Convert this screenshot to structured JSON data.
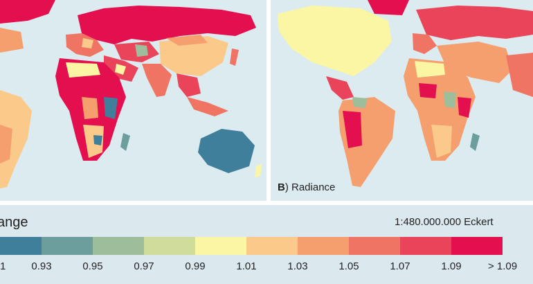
{
  "panels": {
    "a": {
      "letter": "",
      "label": ""
    },
    "b": {
      "letter": "B",
      "label": ") Radiance"
    }
  },
  "legend": {
    "title": "ange",
    "scale_projection": "1:480.000.000  Eckert",
    "classes": [
      {
        "color": "#3f7f9c"
      },
      {
        "color": "#6d9e9e"
      },
      {
        "color": "#9dbd9b"
      },
      {
        "color": "#cfdc9b"
      },
      {
        "color": "#fbf6a4"
      },
      {
        "color": "#fbc98a"
      },
      {
        "color": "#f59f6e"
      },
      {
        "color": "#f07463"
      },
      {
        "color": "#e9445a"
      },
      {
        "color": "#e30f4f"
      }
    ],
    "tick_labels": [
      "1",
      "0.93",
      "0.95",
      "0.97",
      "0.99",
      "1.01",
      "1.03",
      "1.05",
      "1.07",
      "1.09",
      "> 1.09"
    ]
  },
  "colors": {
    "ocean": "#dcebf0",
    "divider": "#ffffff"
  }
}
